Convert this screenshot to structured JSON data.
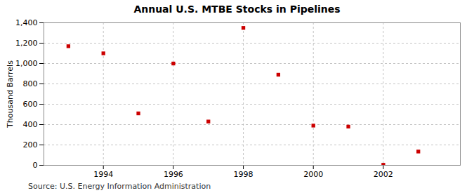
{
  "chart_data": {
    "type": "scatter",
    "title": "Annual U.S. MTBE Stocks in Pipelines",
    "ylabel": "Thousand Barrels",
    "source": "Source: U.S. Energy Information Administration",
    "x": [
      1993,
      1994,
      1995,
      1996,
      1997,
      1998,
      1999,
      2000,
      2001,
      2002,
      2003
    ],
    "values": [
      1170,
      1100,
      510,
      1000,
      430,
      1350,
      890,
      390,
      380,
      5,
      135
    ],
    "color": "#cc0000",
    "marker": "square",
    "xlim": [
      1992.3,
      2004.2
    ],
    "xticks": [
      1994,
      1996,
      1998,
      2000,
      2002
    ],
    "ylim": [
      0,
      1400
    ],
    "yticks": [
      0,
      200,
      400,
      600,
      800,
      {
        "value": 1000,
        "label": "1,000"
      },
      {
        "value": 1200,
        "label": "1,200"
      },
      {
        "value": 1400,
        "label": "1,400"
      }
    ],
    "grid": true
  }
}
